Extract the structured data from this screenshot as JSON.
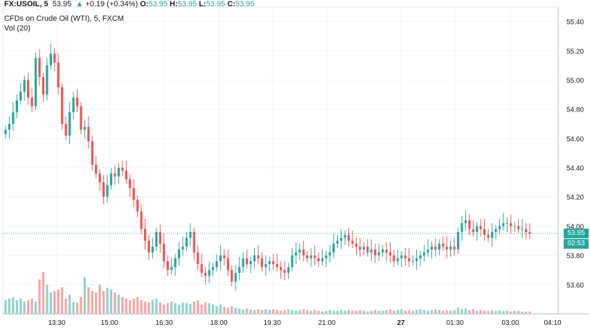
{
  "header": {
    "symbol": "FX:USOIL, 5",
    "last": "53.95",
    "change": "+0.19 (+0.34%)",
    "o_label": "O:",
    "o": "53.95",
    "h_label": "H:",
    "h": "53.95",
    "l_label": "L:",
    "l": "53.95",
    "c_label": "C:",
    "c": "53.95",
    "up_arrow": "▲"
  },
  "series_title": "CFDs on Crude Oil (WTI), 5, FXCM",
  "volume_title": "Vol (20)",
  "price_tag": {
    "price": "53.95",
    "countdown": "02:53"
  },
  "colors": {
    "up": "#26a69a",
    "down": "#ef5350",
    "up_vol": "#8fd3cb",
    "down_vol": "#f4a7a5",
    "last_line": "#26a69a"
  },
  "chart_data": {
    "type": "candlestick",
    "symbol": "FX:USOIL",
    "interval": "5",
    "y_axis": {
      "min": 53.4,
      "max": 55.5,
      "ticks": [
        "55.40",
        "55.20",
        "55.00",
        "54.80",
        "54.60",
        "54.40",
        "54.20",
        "54.00",
        "53.80",
        "53.60"
      ]
    },
    "x_axis": {
      "ticks": [
        "13:30",
        "15:00",
        "16:30",
        "18:00",
        "19:30",
        "21:00",
        "27",
        "01:30",
        "03:00",
        "04:10"
      ]
    },
    "grid": true,
    "last_price": 53.95,
    "closes": [
      54.66,
      54.7,
      54.78,
      54.86,
      54.92,
      55.0,
      54.88,
      54.82,
      55.15,
      55.02,
      54.9,
      55.1,
      55.18,
      55.12,
      54.95,
      54.7,
      54.62,
      54.78,
      54.88,
      54.82,
      54.66,
      54.68,
      54.58,
      54.42,
      54.36,
      54.3,
      54.2,
      54.28,
      54.36,
      54.34,
      54.4,
      54.38,
      54.32,
      54.26,
      54.18,
      54.1,
      53.98,
      53.9,
      53.82,
      53.86,
      53.96,
      53.88,
      53.76,
      53.7,
      53.72,
      53.78,
      53.84,
      53.86,
      53.92,
      53.96,
      53.82,
      53.74,
      53.68,
      53.66,
      53.7,
      53.72,
      53.76,
      53.8,
      53.78,
      53.7,
      53.62,
      53.68,
      53.72,
      53.78,
      53.74,
      53.76,
      53.8,
      53.78,
      53.72,
      53.74,
      53.76,
      53.74,
      53.72,
      53.7,
      53.68,
      53.72,
      53.8,
      53.82,
      53.84,
      53.8,
      53.78,
      53.8,
      53.78,
      53.76,
      53.78,
      53.8,
      53.82,
      53.88,
      53.9,
      53.92,
      53.94,
      53.9,
      53.88,
      53.86,
      53.84,
      53.86,
      53.82,
      53.84,
      53.8,
      53.82,
      53.84,
      53.82,
      53.8,
      53.76,
      53.78,
      53.8,
      53.78,
      53.76,
      53.76,
      53.78,
      53.8,
      53.82,
      53.84,
      53.86,
      53.84,
      53.88,
      53.86,
      53.84,
      53.86,
      53.84,
      53.96,
      54.02,
      54.04,
      53.98,
      53.96,
      54.0,
      53.98,
      53.94,
      53.92,
      53.96,
      53.98,
      54.0,
      54.02,
      54.02,
      54.0,
      54.0,
      53.98,
      53.98,
      53.96,
      53.95
    ],
    "volume_note": "bar heights relative (0-1)",
    "volumes": [
      0.18,
      0.2,
      0.22,
      0.18,
      0.2,
      0.16,
      0.18,
      0.2,
      0.16,
      0.45,
      0.55,
      0.38,
      0.28,
      0.3,
      0.32,
      0.35,
      0.2,
      0.25,
      0.16,
      0.15,
      0.22,
      0.48,
      0.35,
      0.3,
      0.28,
      0.38,
      0.3,
      0.34,
      0.32,
      0.28,
      0.25,
      0.22,
      0.2,
      0.18,
      0.2,
      0.22,
      0.18,
      0.16,
      0.15,
      0.18,
      0.2,
      0.15,
      0.12,
      0.14,
      0.16,
      0.14,
      0.12,
      0.15,
      0.14,
      0.13,
      0.16,
      0.18,
      0.12,
      0.15,
      0.14,
      0.12,
      0.1,
      0.12,
      0.09,
      0.08,
      0.1,
      0.08,
      0.07,
      0.06,
      0.07,
      0.06,
      0.05,
      0.06,
      0.05,
      0.06,
      0.05,
      0.06,
      0.05,
      0.04,
      0.05,
      0.06,
      0.05,
      0.04,
      0.05,
      0.06,
      0.05,
      0.04,
      0.05,
      0.04,
      0.03,
      0.04,
      0.05,
      0.04,
      0.04,
      0.05,
      0.04,
      0.05,
      0.04,
      0.04,
      0.05,
      0.04,
      0.03,
      0.04,
      0.05,
      0.04,
      0.04,
      0.05,
      0.06,
      0.04,
      0.05,
      0.06,
      0.04,
      0.05,
      0.04,
      0.05,
      0.06,
      0.05,
      0.04,
      0.05,
      0.06,
      0.05,
      0.04,
      0.05,
      0.04,
      0.05,
      0.08,
      0.06,
      0.07,
      0.05,
      0.06,
      0.04,
      0.05,
      0.04,
      0.04,
      0.05,
      0.04,
      0.05,
      0.04,
      0.04,
      0.03,
      0.04,
      0.04,
      0.03,
      0.03,
      0.03
    ]
  }
}
